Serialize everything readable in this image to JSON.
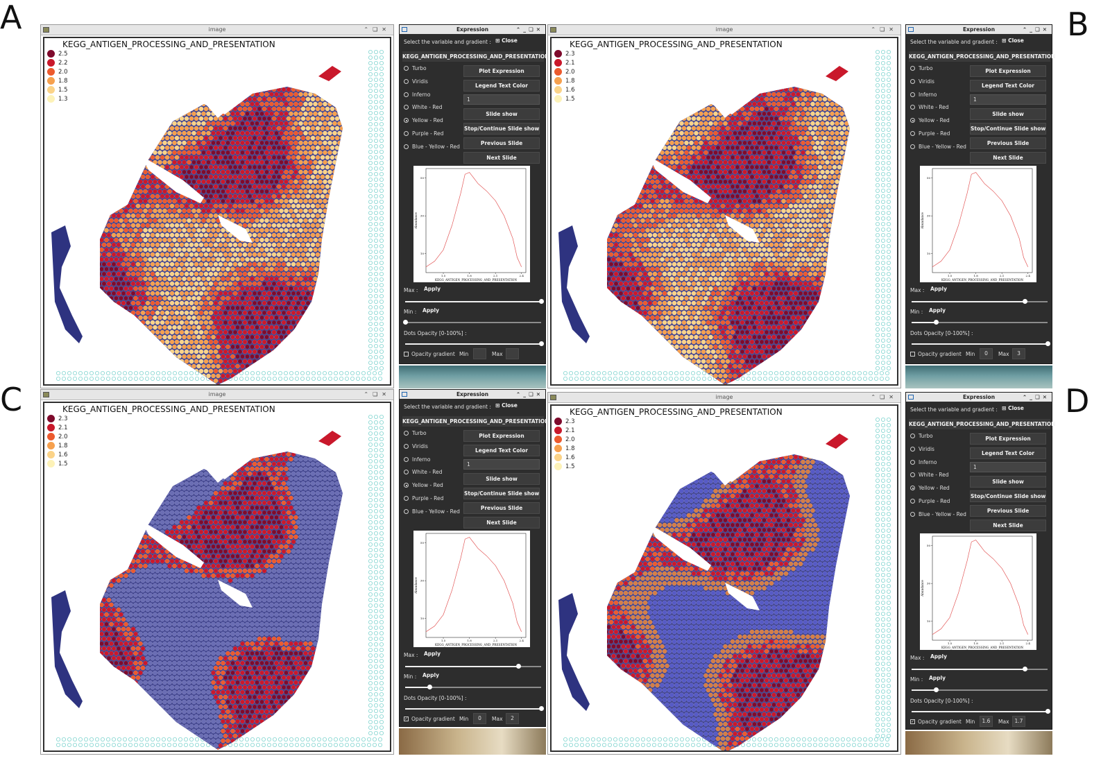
{
  "panel_labels": [
    "A",
    "B",
    "C",
    "D"
  ],
  "image_window": {
    "title": "image"
  },
  "expression_window": {
    "title": "Expression",
    "select_label": "Select the variable and gradient :",
    "close_label": "Close",
    "gradients": [
      "Turbo",
      "Viridis",
      "Inferno",
      "White - Red",
      "Yellow - Red",
      "Purple - Red",
      "Blue - Yellow - Red"
    ],
    "selected_gradient": "Yellow - Red",
    "buttons": {
      "plot_expression": "Plot Expression",
      "legend_text_color": "Legend Text Color",
      "slide_show": "Slide show",
      "stop_continue": "Stop/Continue Slide show",
      "previous_slide": "Previous Slide",
      "next_slide": "Next Slide"
    },
    "legend_text_color_value": "1",
    "max_label": "Max :",
    "min_label": "Min :",
    "apply_label": "Apply",
    "opacity_label": "Dots Opacity [0-100%] :",
    "opacity_gradient_label": "Opacity gradient",
    "og_min_label": "Min",
    "og_max_label": "Max"
  },
  "panels": {
    "A": {
      "variable": "KEGG_ANTIGEN_PROCESSING_AND_PRESENTATION",
      "legend": [
        "2.5",
        "2.2",
        "2.0",
        "1.8",
        "1.5",
        "1.3"
      ],
      "opacity_gradient_checked": false,
      "og_min": "",
      "og_max": "",
      "max_slider": 1.0,
      "min_slider": 0.0,
      "opacity_slider": 1.0
    },
    "B": {
      "variable": "KEGG_ANTIGEN_PROCESSING_AND_PRESENTATION",
      "legend": [
        "2.3",
        "2.1",
        "2.0",
        "1.8",
        "1.6",
        "1.5"
      ],
      "opacity_gradient_checked": false,
      "og_min": "0",
      "og_max": "3",
      "max_slider": 0.83,
      "min_slider": 0.18,
      "opacity_slider": 1.0
    },
    "C": {
      "variable": "KEGG_ANTIGEN_PROCESSING_AND_PRESENTATION",
      "legend": [
        "2.3",
        "2.1",
        "2.0",
        "1.8",
        "1.6",
        "1.5"
      ],
      "opacity_gradient_checked": true,
      "og_min": "0",
      "og_max": "2",
      "max_slider": 0.83,
      "min_slider": 0.18,
      "opacity_slider": 1.0
    },
    "D": {
      "variable": "KEGG_ANTIGEN_PROCESSING_AND_PRESENTATION",
      "legend": [
        "2.3",
        "2.1",
        "2.0",
        "1.8",
        "1.6",
        "1.5"
      ],
      "opacity_gradient_checked": true,
      "og_min": "1.6",
      "og_max": "1.7",
      "max_slider": 0.83,
      "min_slider": 0.18,
      "opacity_slider": 1.0
    }
  },
  "legend_colors": [
    "#7e0a2c",
    "#c9182b",
    "#ec5a2e",
    "#f6a04e",
    "#fbd388",
    "#fdf2b8"
  ],
  "chart_data": {
    "type": "line",
    "xlabel": "KEGG_ANTIGEN_PROCESSING_AND_PRESENTATION",
    "ylabel": "Abundance",
    "x_ticks": [
      "1.5",
      "1.8",
      "2.1",
      "2.4"
    ],
    "y_ticks": [
      "10",
      "30",
      "50"
    ],
    "x": [
      1.3,
      1.4,
      1.5,
      1.6,
      1.7,
      1.75,
      1.8,
      1.85,
      1.9,
      2.0,
      2.1,
      2.2,
      2.3,
      2.35,
      2.4
    ],
    "y": [
      3,
      6,
      12,
      25,
      42,
      52,
      53,
      50,
      47,
      43,
      38,
      30,
      18,
      8,
      3
    ],
    "xlim": [
      1.3,
      2.45
    ],
    "ylim": [
      0,
      55
    ],
    "color": "#e35a5a"
  }
}
